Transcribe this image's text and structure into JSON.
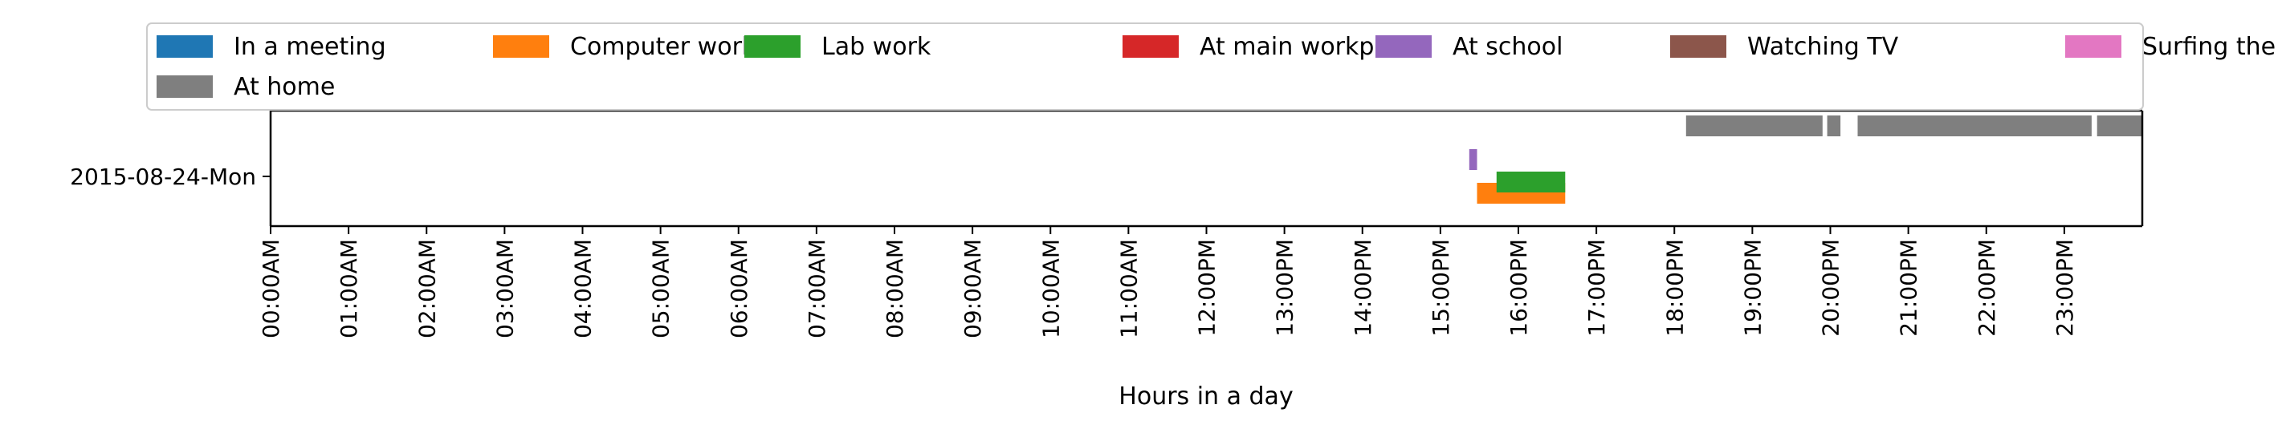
{
  "chart_data": {
    "type": "bar",
    "orientation": "horizontal-timeline",
    "xlabel": "Hours in a day",
    "ylabel": "",
    "xlim": [
      0,
      24
    ],
    "grid": false,
    "legend_placement": "top",
    "x_ticks": [
      {
        "value": 0,
        "label": "00:00AM"
      },
      {
        "value": 1,
        "label": "01:00AM"
      },
      {
        "value": 2,
        "label": "02:00AM"
      },
      {
        "value": 3,
        "label": "03:00AM"
      },
      {
        "value": 4,
        "label": "04:00AM"
      },
      {
        "value": 5,
        "label": "05:00AM"
      },
      {
        "value": 6,
        "label": "06:00AM"
      },
      {
        "value": 7,
        "label": "07:00AM"
      },
      {
        "value": 8,
        "label": "08:00AM"
      },
      {
        "value": 9,
        "label": "09:00AM"
      },
      {
        "value": 10,
        "label": "10:00AM"
      },
      {
        "value": 11,
        "label": "11:00AM"
      },
      {
        "value": 12,
        "label": "12:00PM"
      },
      {
        "value": 13,
        "label": "13:00PM"
      },
      {
        "value": 14,
        "label": "14:00PM"
      },
      {
        "value": 15,
        "label": "15:00PM"
      },
      {
        "value": 16,
        "label": "16:00PM"
      },
      {
        "value": 17,
        "label": "17:00PM"
      },
      {
        "value": 18,
        "label": "18:00PM"
      },
      {
        "value": 19,
        "label": "19:00PM"
      },
      {
        "value": 20,
        "label": "20:00PM"
      },
      {
        "value": 21,
        "label": "21:00PM"
      },
      {
        "value": 22,
        "label": "22:00PM"
      },
      {
        "value": 23,
        "label": "23:00PM"
      }
    ],
    "categories": [
      "2015-08-24-Mon"
    ],
    "series": [
      {
        "name": "In a meeting",
        "color": "#1f77b4",
        "lane": 0,
        "intervals": []
      },
      {
        "name": "Computer work",
        "color": "#ff7f0e",
        "lane": 1,
        "intervals": [
          [
            15.47,
            16.6
          ]
        ]
      },
      {
        "name": "Lab work",
        "color": "#2ca02c",
        "lane": 2,
        "intervals": [
          [
            15.72,
            16.6
          ]
        ]
      },
      {
        "name": "At main workplace",
        "color": "#d62728",
        "lane": 3,
        "intervals": []
      },
      {
        "name": "At school",
        "color": "#9467bd",
        "lane": 4,
        "intervals": [
          [
            15.37,
            15.47
          ]
        ]
      },
      {
        "name": "Watching TV",
        "color": "#8c564b",
        "lane": 5,
        "intervals": []
      },
      {
        "name": "Surfing the internet",
        "color": "#e377c2",
        "lane": 6,
        "intervals": []
      },
      {
        "name": "At home",
        "color": "#7f7f7f",
        "lane": 7,
        "intervals": [
          [
            18.15,
            19.9
          ],
          [
            19.96,
            20.13
          ],
          [
            20.35,
            23.35
          ],
          [
            23.42,
            24.0
          ]
        ]
      }
    ]
  }
}
